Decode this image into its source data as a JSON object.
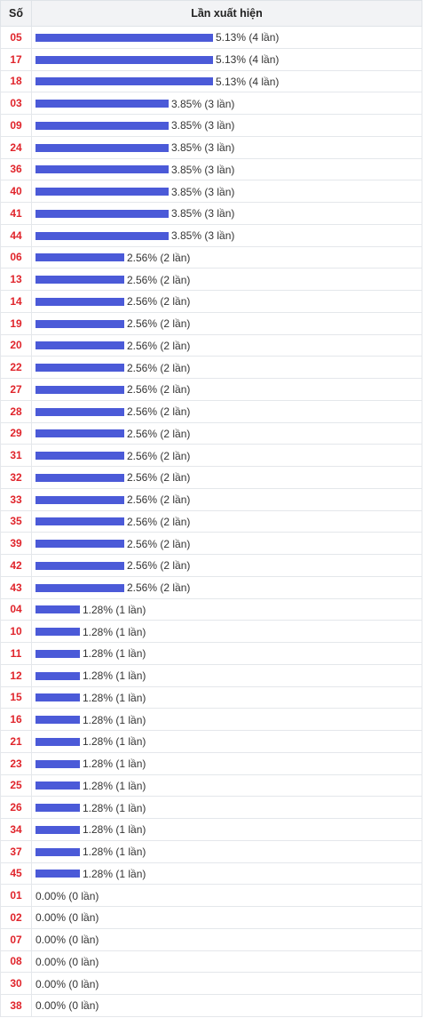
{
  "table": {
    "header_number": "Số",
    "header_freq": "Lần xuất hiện"
  },
  "colors": {
    "bar": "#4b5ad8",
    "number": "#e0242b"
  },
  "chart_data": {
    "type": "bar",
    "orientation": "horizontal",
    "xlabel": "Lần xuất hiện",
    "ylabel": "Số",
    "rows": [
      {
        "number": "05",
        "percent": 5.13,
        "count": 4,
        "label": "5.13% (4 lần)"
      },
      {
        "number": "17",
        "percent": 5.13,
        "count": 4,
        "label": "5.13% (4 lần)"
      },
      {
        "number": "18",
        "percent": 5.13,
        "count": 4,
        "label": "5.13% (4 lần)"
      },
      {
        "number": "03",
        "percent": 3.85,
        "count": 3,
        "label": "3.85% (3 lần)"
      },
      {
        "number": "09",
        "percent": 3.85,
        "count": 3,
        "label": "3.85% (3 lần)"
      },
      {
        "number": "24",
        "percent": 3.85,
        "count": 3,
        "label": "3.85% (3 lần)"
      },
      {
        "number": "36",
        "percent": 3.85,
        "count": 3,
        "label": "3.85% (3 lần)"
      },
      {
        "number": "40",
        "percent": 3.85,
        "count": 3,
        "label": "3.85% (3 lần)"
      },
      {
        "number": "41",
        "percent": 3.85,
        "count": 3,
        "label": "3.85% (3 lần)"
      },
      {
        "number": "44",
        "percent": 3.85,
        "count": 3,
        "label": "3.85% (3 lần)"
      },
      {
        "number": "06",
        "percent": 2.56,
        "count": 2,
        "label": "2.56% (2 lần)"
      },
      {
        "number": "13",
        "percent": 2.56,
        "count": 2,
        "label": "2.56% (2 lần)"
      },
      {
        "number": "14",
        "percent": 2.56,
        "count": 2,
        "label": "2.56% (2 lần)"
      },
      {
        "number": "19",
        "percent": 2.56,
        "count": 2,
        "label": "2.56% (2 lần)"
      },
      {
        "number": "20",
        "percent": 2.56,
        "count": 2,
        "label": "2.56% (2 lần)"
      },
      {
        "number": "22",
        "percent": 2.56,
        "count": 2,
        "label": "2.56% (2 lần)"
      },
      {
        "number": "27",
        "percent": 2.56,
        "count": 2,
        "label": "2.56% (2 lần)"
      },
      {
        "number": "28",
        "percent": 2.56,
        "count": 2,
        "label": "2.56% (2 lần)"
      },
      {
        "number": "29",
        "percent": 2.56,
        "count": 2,
        "label": "2.56% (2 lần)"
      },
      {
        "number": "31",
        "percent": 2.56,
        "count": 2,
        "label": "2.56% (2 lần)"
      },
      {
        "number": "32",
        "percent": 2.56,
        "count": 2,
        "label": "2.56% (2 lần)"
      },
      {
        "number": "33",
        "percent": 2.56,
        "count": 2,
        "label": "2.56% (2 lần)"
      },
      {
        "number": "35",
        "percent": 2.56,
        "count": 2,
        "label": "2.56% (2 lần)"
      },
      {
        "number": "39",
        "percent": 2.56,
        "count": 2,
        "label": "2.56% (2 lần)"
      },
      {
        "number": "42",
        "percent": 2.56,
        "count": 2,
        "label": "2.56% (2 lần)"
      },
      {
        "number": "43",
        "percent": 2.56,
        "count": 2,
        "label": "2.56% (2 lần)"
      },
      {
        "number": "04",
        "percent": 1.28,
        "count": 1,
        "label": "1.28% (1 lần)"
      },
      {
        "number": "10",
        "percent": 1.28,
        "count": 1,
        "label": "1.28% (1 lần)"
      },
      {
        "number": "11",
        "percent": 1.28,
        "count": 1,
        "label": "1.28% (1 lần)"
      },
      {
        "number": "12",
        "percent": 1.28,
        "count": 1,
        "label": "1.28% (1 lần)"
      },
      {
        "number": "15",
        "percent": 1.28,
        "count": 1,
        "label": "1.28% (1 lần)"
      },
      {
        "number": "16",
        "percent": 1.28,
        "count": 1,
        "label": "1.28% (1 lần)"
      },
      {
        "number": "21",
        "percent": 1.28,
        "count": 1,
        "label": "1.28% (1 lần)"
      },
      {
        "number": "23",
        "percent": 1.28,
        "count": 1,
        "label": "1.28% (1 lần)"
      },
      {
        "number": "25",
        "percent": 1.28,
        "count": 1,
        "label": "1.28% (1 lần)"
      },
      {
        "number": "26",
        "percent": 1.28,
        "count": 1,
        "label": "1.28% (1 lần)"
      },
      {
        "number": "34",
        "percent": 1.28,
        "count": 1,
        "label": "1.28% (1 lần)"
      },
      {
        "number": "37",
        "percent": 1.28,
        "count": 1,
        "label": "1.28% (1 lần)"
      },
      {
        "number": "45",
        "percent": 1.28,
        "count": 1,
        "label": "1.28% (1 lần)"
      },
      {
        "number": "01",
        "percent": 0.0,
        "count": 0,
        "label": "0.00% (0 lần)"
      },
      {
        "number": "02",
        "percent": 0.0,
        "count": 0,
        "label": "0.00% (0 lần)"
      },
      {
        "number": "07",
        "percent": 0.0,
        "count": 0,
        "label": "0.00% (0 lần)"
      },
      {
        "number": "08",
        "percent": 0.0,
        "count": 0,
        "label": "0.00% (0 lần)"
      },
      {
        "number": "30",
        "percent": 0.0,
        "count": 0,
        "label": "0.00% (0 lần)"
      },
      {
        "number": "38",
        "percent": 0.0,
        "count": 0,
        "label": "0.00% (0 lần)"
      }
    ]
  }
}
